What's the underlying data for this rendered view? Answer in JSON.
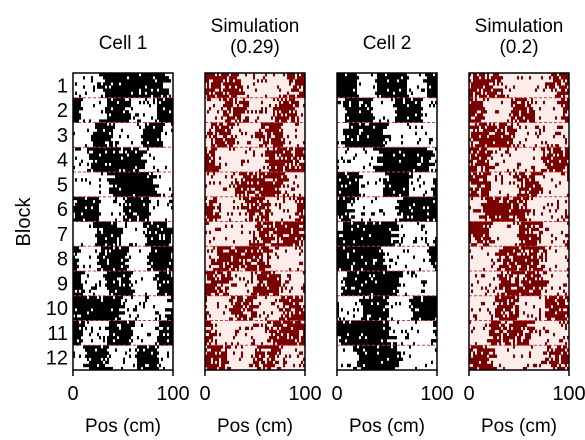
{
  "chart_data": {
    "type": "heatmap",
    "ylabel": "Block",
    "blocks": [
      "1",
      "2",
      "3",
      "4",
      "5",
      "6",
      "7",
      "8",
      "9",
      "10",
      "11",
      "12"
    ],
    "colors": {
      "black": "#000000",
      "white": "#ffffff",
      "dark_red": "#7a0000",
      "pale_pink": "#fcecea",
      "divider": "#d23c3c"
    },
    "panels": [
      {
        "title_lines": [
          "Cell 1"
        ],
        "xlabel": "Pos (cm)",
        "xlim": [
          0,
          100
        ],
        "xticks": [
          "0",
          "100"
        ],
        "style": "cell",
        "high_fraction_per_block": [
          0.75,
          0.5,
          0.35,
          0.55,
          0.45,
          0.55,
          0.5,
          0.6,
          0.5,
          0.55,
          0.5,
          0.4
        ]
      },
      {
        "title_lines": [
          "Simulation",
          "(0.29)"
        ],
        "xlabel": "Pos (cm)",
        "xlim": [
          0,
          100
        ],
        "xticks": [
          "0",
          "100"
        ],
        "style": "sim",
        "high_fraction_per_block": [
          0.55,
          0.45,
          0.45,
          0.5,
          0.45,
          0.45,
          0.55,
          0.55,
          0.5,
          0.5,
          0.45,
          0.5
        ]
      },
      {
        "title_lines": [
          "Cell 2"
        ],
        "xlabel": "Pos (cm)",
        "xlim": [
          0,
          100
        ],
        "xticks": [
          "0",
          "100"
        ],
        "style": "cell",
        "high_fraction_per_block": [
          0.7,
          0.55,
          0.35,
          0.55,
          0.5,
          0.55,
          0.6,
          0.55,
          0.6,
          0.55,
          0.6,
          0.4
        ]
      },
      {
        "title_lines": [
          "Simulation",
          "(0.2)"
        ],
        "xlabel": "Pos (cm)",
        "xlim": [
          0,
          100
        ],
        "xticks": [
          "0",
          "100"
        ],
        "style": "sim",
        "high_fraction_per_block": [
          0.5,
          0.45,
          0.4,
          0.45,
          0.4,
          0.45,
          0.45,
          0.5,
          0.45,
          0.45,
          0.4,
          0.4
        ]
      }
    ]
  }
}
